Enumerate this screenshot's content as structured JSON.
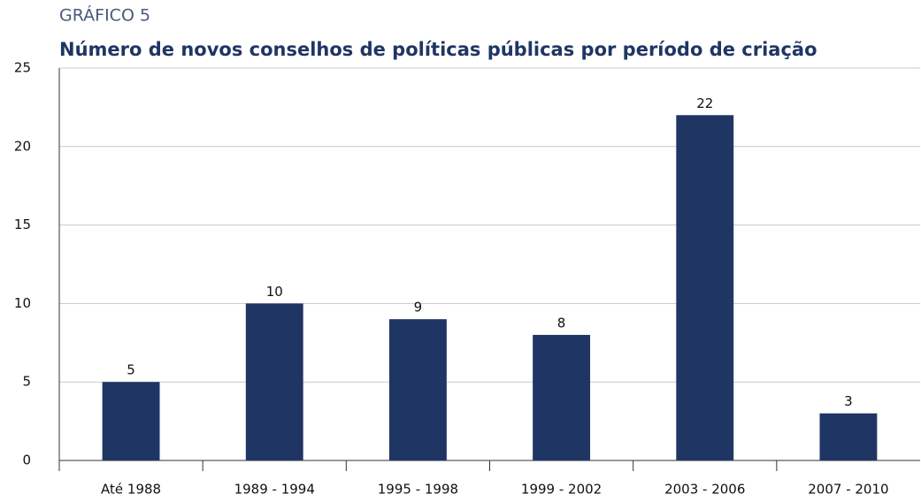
{
  "chart_data": {
    "type": "bar",
    "chart_number": "GRÁFICO 5",
    "title": "Número de novos conselhos de políticas públicas por período de criação",
    "categories": [
      "Até 1988",
      "1989 - 1994",
      "1995 - 1998",
      "1999 - 2002",
      "2003 - 2006",
      "2007 - 2010"
    ],
    "values": [
      5,
      10,
      9,
      8,
      22,
      3
    ],
    "color": "#1f3564",
    "ylim": [
      0,
      25
    ],
    "yticks": [
      0,
      5,
      10,
      15,
      20,
      25
    ],
    "grid": true
  }
}
